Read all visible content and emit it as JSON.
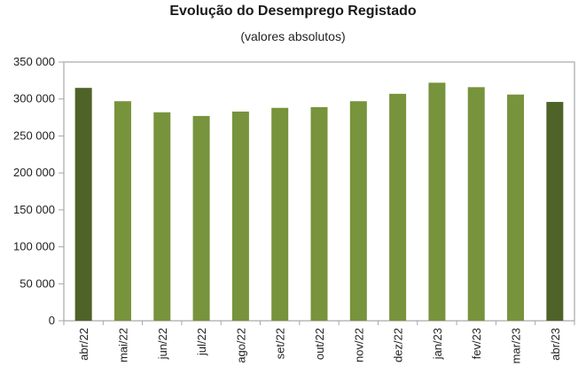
{
  "chart_data": {
    "type": "bar",
    "title": "Evolução do Desemprego Registado",
    "subtitle": "(valores absolutos)",
    "xlabel": "",
    "ylabel": "",
    "ylim": [
      0,
      350000
    ],
    "yticks": [
      0,
      50000,
      100000,
      150000,
      200000,
      250000,
      300000,
      350000
    ],
    "ytick_labels": [
      "0",
      "50 000",
      "100 000",
      "150 000",
      "200 000",
      "250 000",
      "300 000",
      "350 000"
    ],
    "grid": false,
    "legend": "none",
    "categories": [
      "abr/22",
      "mai/22",
      "jun/22",
      "jul/22",
      "ago/22",
      "set/22",
      "out/22",
      "nov/22",
      "dez/22",
      "jan/23",
      "fev/23",
      "mar/23",
      "abr/23"
    ],
    "values": [
      315000,
      297000,
      282000,
      277000,
      283000,
      288000,
      289000,
      297000,
      307000,
      322000,
      316000,
      306000,
      296000
    ],
    "colors": {
      "highlight": "#4f6228",
      "default": "#77933c",
      "frame": "#a6a6a6"
    },
    "highlight_indices": [
      0,
      12
    ]
  }
}
